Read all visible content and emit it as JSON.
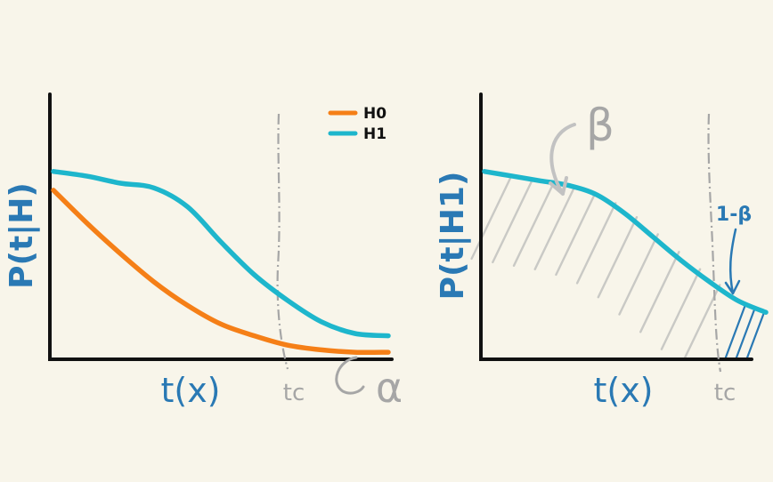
{
  "colors": {
    "background": "#f8f5ea",
    "axis": "#111111",
    "h0": "#f57f17",
    "h1": "#1eb6cc",
    "label_blue": "#2a79b4",
    "annot_gray": "#a6a6a6",
    "hatch_gray": "#c9c9c5",
    "hatch_blue": "#2a79b4"
  },
  "chart_data": [
    {
      "type": "line",
      "panel": "left",
      "xlabel": "t(x)",
      "ylabel": "P(t|H)",
      "legend": {
        "placement": "top-right",
        "entries": [
          "H0",
          "H1"
        ]
      },
      "threshold_label": "tc",
      "threshold_x": 0.7,
      "xlim": [
        0,
        1
      ],
      "ylim": [
        0,
        1
      ],
      "shaded_region_label": "α",
      "series": [
        {
          "name": "H0",
          "x": [
            0.0,
            0.1,
            0.2,
            0.3,
            0.4,
            0.5,
            0.6,
            0.7,
            0.8,
            0.9,
            1.0
          ],
          "y": [
            0.72,
            0.58,
            0.45,
            0.33,
            0.23,
            0.15,
            0.1,
            0.06,
            0.04,
            0.03,
            0.03
          ]
        },
        {
          "name": "H1",
          "x": [
            0.0,
            0.1,
            0.2,
            0.3,
            0.4,
            0.5,
            0.6,
            0.7,
            0.8,
            0.9,
            1.0
          ],
          "y": [
            0.8,
            0.78,
            0.75,
            0.73,
            0.65,
            0.5,
            0.36,
            0.25,
            0.16,
            0.11,
            0.1
          ]
        }
      ]
    },
    {
      "type": "line",
      "panel": "right",
      "xlabel": "t(x)",
      "ylabel": "P(t|H1)",
      "threshold_label": "tc",
      "threshold_x": 0.87,
      "xlim": [
        0,
        1
      ],
      "ylim": [
        0,
        1
      ],
      "shaded_region_labels": [
        "β",
        "1-β"
      ],
      "series": [
        {
          "name": "H1",
          "x": [
            0.0,
            0.1,
            0.2,
            0.3,
            0.4,
            0.5,
            0.6,
            0.7,
            0.8,
            0.9,
            1.0
          ],
          "y": [
            0.8,
            0.78,
            0.76,
            0.74,
            0.7,
            0.62,
            0.52,
            0.42,
            0.33,
            0.25,
            0.2
          ]
        }
      ]
    }
  ]
}
